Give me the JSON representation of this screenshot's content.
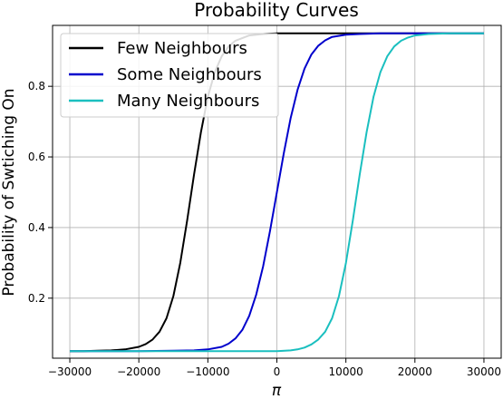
{
  "chart_data": {
    "type": "line",
    "title": "Probability Curves",
    "xlabel": "π",
    "ylabel": "Probability of Swtiching On",
    "xlim": [
      -32500,
      32500
    ],
    "ylim": [
      0.03,
      0.9725
    ],
    "xticks": [
      -30000,
      -20000,
      -10000,
      0,
      10000,
      20000,
      30000
    ],
    "yticks": [
      0.2,
      0.4,
      0.6,
      0.8
    ],
    "grid": true,
    "legend_position": "top-left",
    "series": [
      {
        "name": "Few Neighbours",
        "color": "#000000",
        "x": [
          -30000,
          -28000,
          -26000,
          -24000,
          -22000,
          -20000,
          -19000,
          -18000,
          -17000,
          -16000,
          -15000,
          -14000,
          -13000,
          -12000,
          -11000,
          -10000,
          -9000,
          -8000,
          -7000,
          -6000,
          -4000,
          -2000,
          0,
          5000,
          10000,
          15000,
          20000,
          25000,
          30000
        ],
        "y": [
          0.05,
          0.05,
          0.051,
          0.052,
          0.055,
          0.062,
          0.07,
          0.083,
          0.105,
          0.143,
          0.206,
          0.3,
          0.42,
          0.55,
          0.67,
          0.77,
          0.84,
          0.885,
          0.913,
          0.929,
          0.944,
          0.948,
          0.95,
          0.95,
          0.95,
          0.95,
          0.95,
          0.95,
          0.95
        ]
      },
      {
        "name": "Some Neighbours",
        "color": "#0000cc",
        "x": [
          -30000,
          -25000,
          -20000,
          -15000,
          -12000,
          -10000,
          -8000,
          -7000,
          -6000,
          -5000,
          -4000,
          -3000,
          -2000,
          -1000,
          0,
          1000,
          2000,
          3000,
          4000,
          5000,
          6000,
          7000,
          8000,
          10000,
          12000,
          15000,
          20000,
          25000,
          30000
        ],
        "y": [
          0.05,
          0.05,
          0.05,
          0.051,
          0.052,
          0.055,
          0.062,
          0.071,
          0.086,
          0.11,
          0.15,
          0.21,
          0.29,
          0.39,
          0.5,
          0.61,
          0.71,
          0.79,
          0.85,
          0.89,
          0.915,
          0.93,
          0.94,
          0.946,
          0.948,
          0.95,
          0.95,
          0.95,
          0.95
        ]
      },
      {
        "name": "Many Neighbours",
        "color": "#1abfbf",
        "x": [
          -30000,
          -20000,
          -10000,
          0,
          2000,
          3000,
          4000,
          5000,
          6000,
          7000,
          8000,
          9000,
          10000,
          11000,
          12000,
          13000,
          14000,
          15000,
          16000,
          17000,
          18000,
          19000,
          20000,
          22000,
          25000,
          28000,
          30000
        ],
        "y": [
          0.05,
          0.05,
          0.05,
          0.05,
          0.052,
          0.055,
          0.06,
          0.069,
          0.083,
          0.105,
          0.143,
          0.206,
          0.3,
          0.42,
          0.55,
          0.67,
          0.77,
          0.84,
          0.885,
          0.913,
          0.929,
          0.938,
          0.944,
          0.948,
          0.95,
          0.95,
          0.95
        ]
      }
    ]
  }
}
